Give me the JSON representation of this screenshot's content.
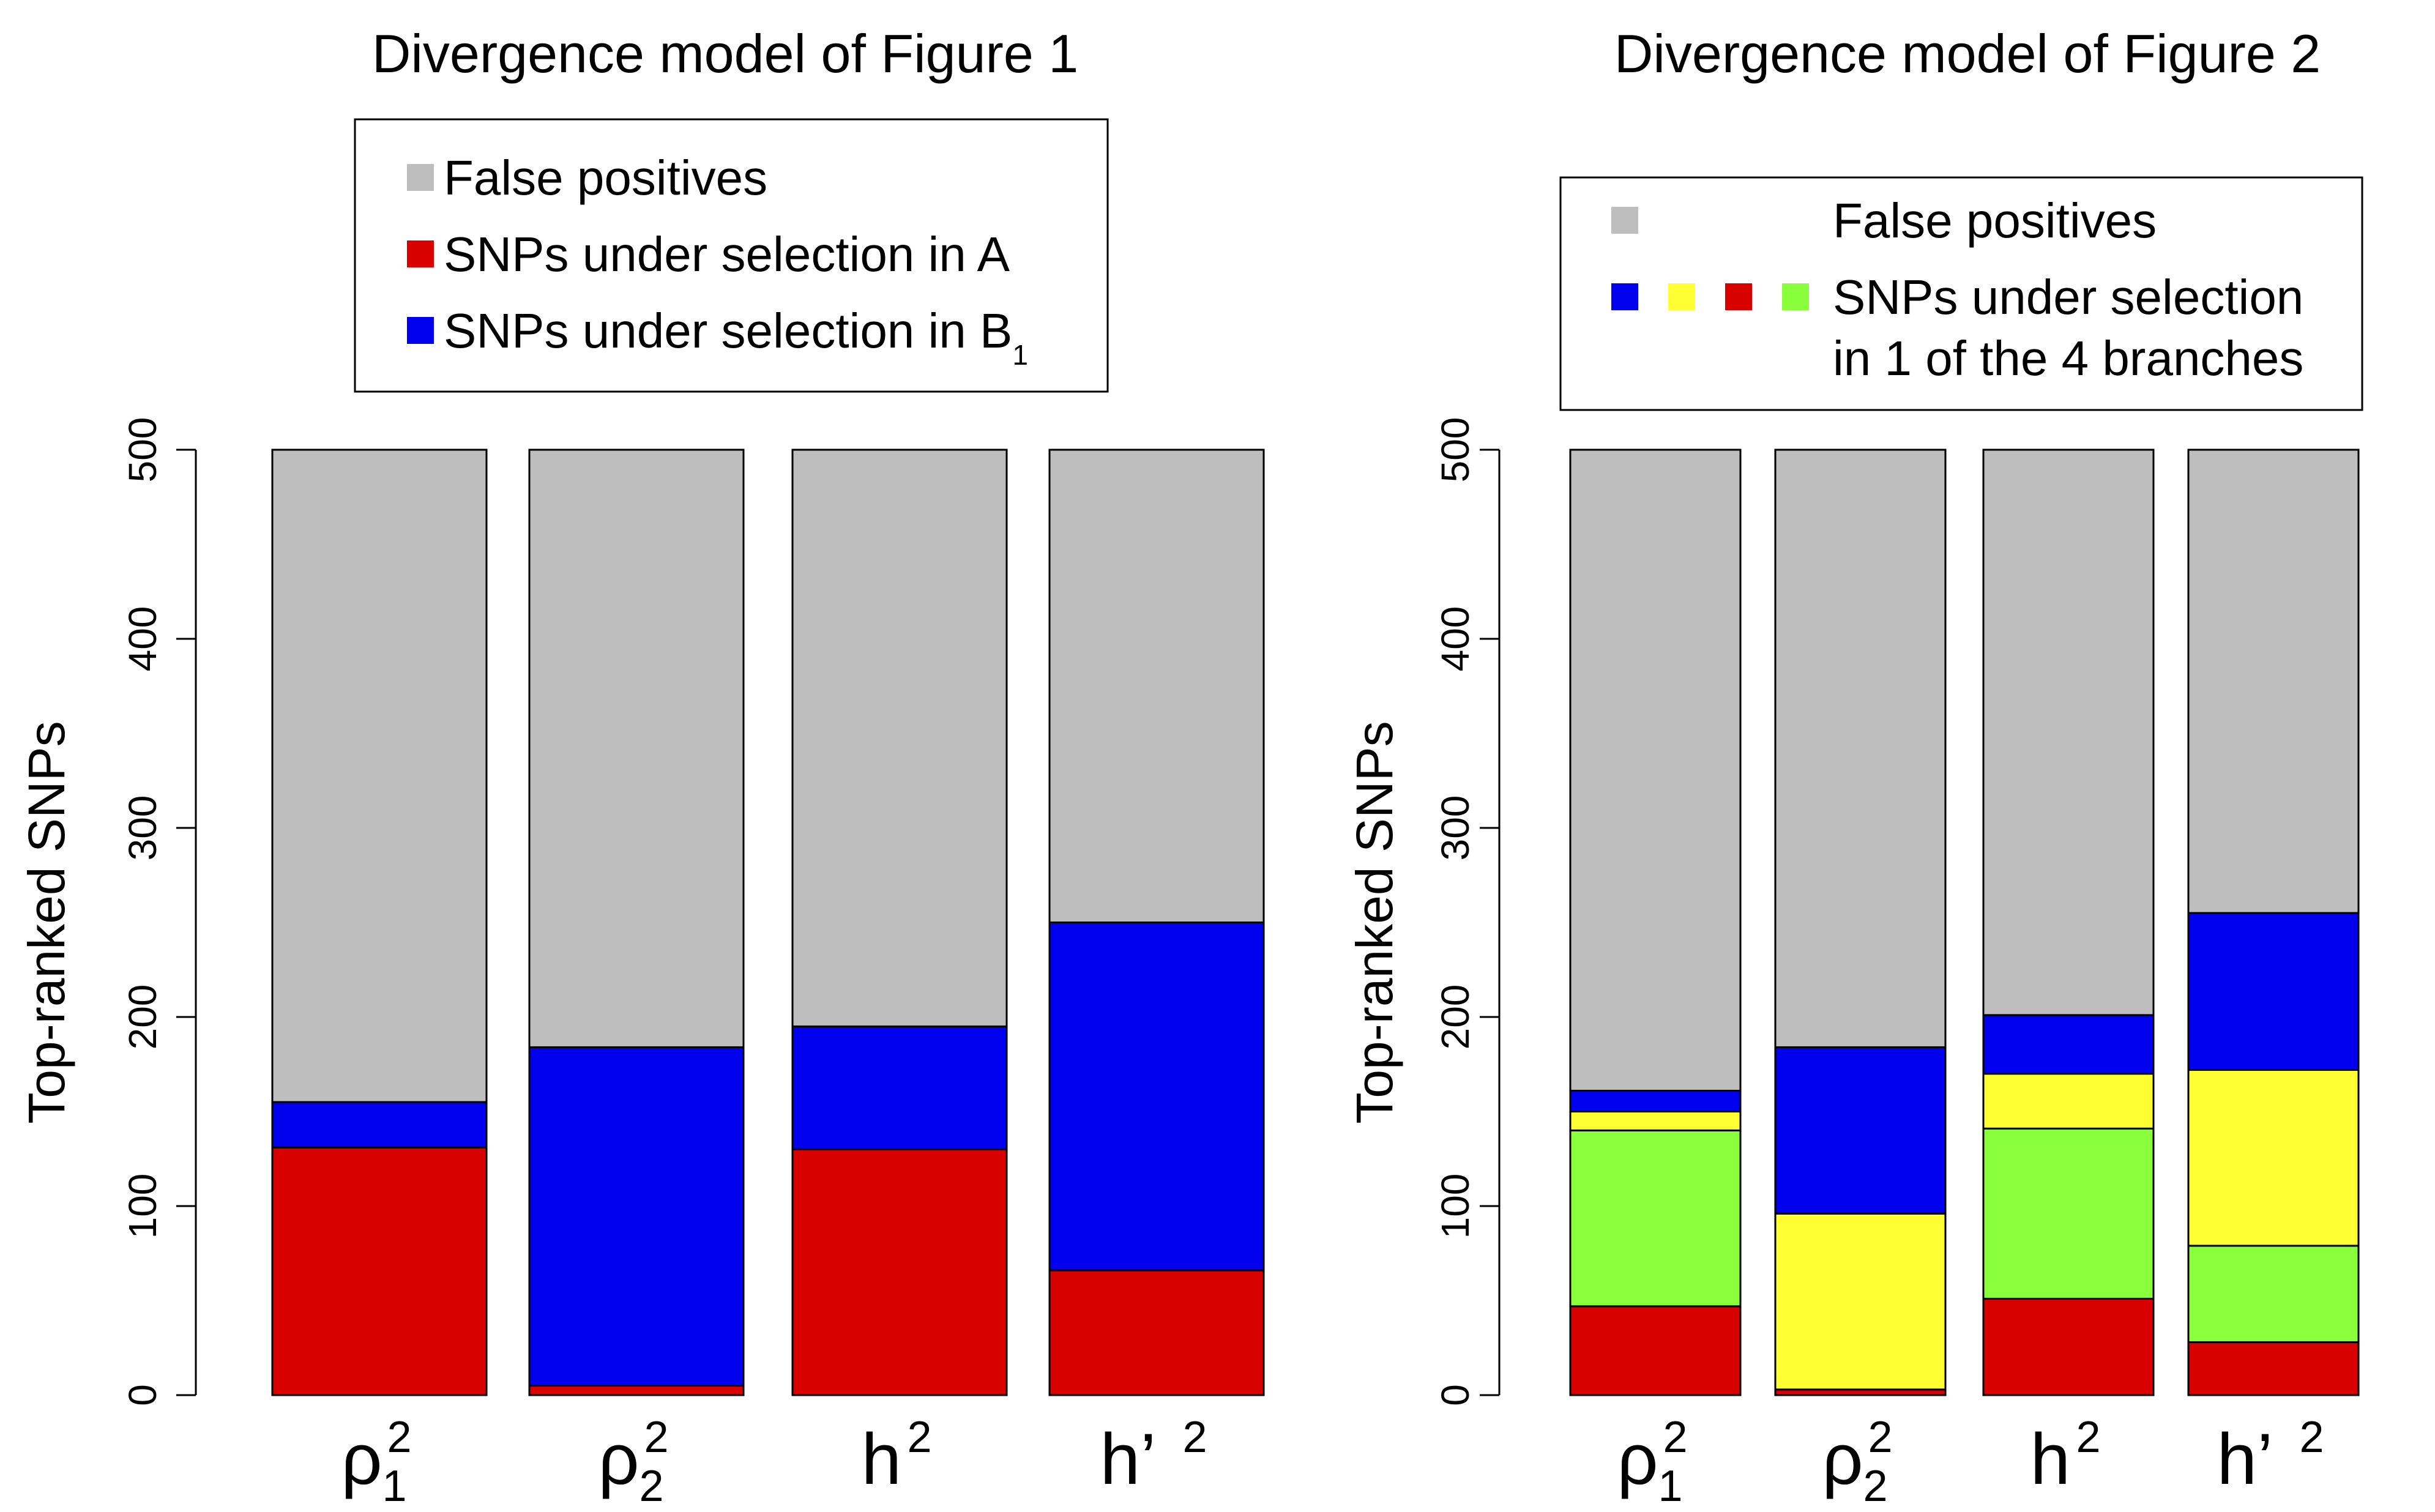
{
  "chart_data": [
    {
      "type": "bar",
      "stacked": true,
      "title": "Divergence model of Figure 1",
      "xlabel": "",
      "ylabel": "Top-ranked SNPs",
      "ylim": [
        0,
        500
      ],
      "yticks": [
        0,
        100,
        200,
        300,
        400,
        500
      ],
      "categories": [
        {
          "base": "ρ",
          "sup": "2",
          "sub": "1"
        },
        {
          "base": "ρ",
          "sup": "2",
          "sub": "2"
        },
        {
          "base": "h",
          "sup": "2",
          "sub": ""
        },
        {
          "base": "h’",
          "sup": "2",
          "sub": ""
        }
      ],
      "series": [
        {
          "key": "sel_A",
          "color": "#d90000",
          "values": [
            131,
            5,
            130,
            66
          ]
        },
        {
          "key": "sel_B1",
          "color": "#0000ee",
          "values": [
            24,
            179,
            65,
            184
          ]
        },
        {
          "key": "false_pos",
          "color": "#bebebe",
          "values": [
            345,
            316,
            305,
            250
          ]
        }
      ],
      "legend": {
        "position": "top",
        "entries": [
          {
            "colors": [
              "#bebebe"
            ],
            "lines": [
              "False positives"
            ]
          },
          {
            "colors": [
              "#d90000"
            ],
            "lines": [
              "SNPs under selection in A"
            ]
          },
          {
            "colors": [
              "#0000ee"
            ],
            "lines": [
              "SNPs under selection in B"
            ],
            "line_sub": "1"
          }
        ]
      }
    },
    {
      "type": "bar",
      "stacked": true,
      "title": "Divergence model of Figure 2",
      "xlabel": "",
      "ylabel": "Top-ranked SNPs",
      "ylim": [
        0,
        500
      ],
      "yticks": [
        0,
        100,
        200,
        300,
        400,
        500
      ],
      "categories": [
        {
          "base": "ρ",
          "sup": "2",
          "sub": "1"
        },
        {
          "base": "ρ",
          "sup": "2",
          "sub": "2"
        },
        {
          "base": "h",
          "sup": "2",
          "sub": ""
        },
        {
          "base": "h’",
          "sup": "2",
          "sub": ""
        }
      ],
      "series": [
        {
          "key": "red",
          "color": "#d90000",
          "values": [
            47,
            3,
            51,
            28
          ]
        },
        {
          "key": "green",
          "color": "#8aff3c",
          "values": [
            93,
            0,
            90,
            51
          ]
        },
        {
          "key": "yellow",
          "color": "#ffff33",
          "values": [
            10,
            93,
            29,
            93
          ]
        },
        {
          "key": "blue",
          "color": "#0000ee",
          "values": [
            11,
            88,
            31,
            83
          ]
        },
        {
          "key": "false_pos",
          "color": "#bebebe",
          "values": [
            339,
            316,
            299,
            245
          ]
        }
      ],
      "legend": {
        "position": "top",
        "entries": [
          {
            "colors": [
              "#bebebe"
            ],
            "lines": [
              "False positives"
            ]
          },
          {
            "colors": [
              "#0000ee",
              "#ffff33",
              "#d90000",
              "#8aff3c"
            ],
            "lines": [
              "SNPs under selection",
              "in 1 of the 4 branches"
            ]
          }
        ]
      }
    }
  ]
}
